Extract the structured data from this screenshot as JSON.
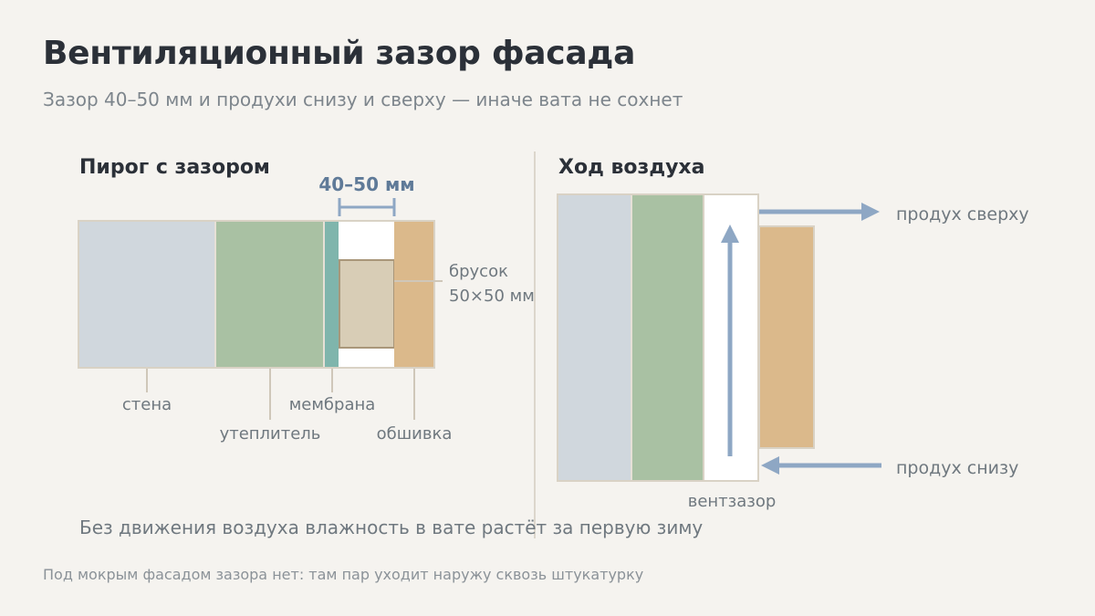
{
  "title": "Вентиляционный зазор фасада",
  "subtitle": "Зазор 40–50 мм и продухи снизу и сверху — иначе вата не сохнет",
  "left_panel": {
    "title": "Пирог с зазором",
    "gap_dimension": "40–50 мм",
    "batten_label_line1": "брусок",
    "batten_label_line2": "50×50 мм",
    "layers": {
      "wall": "стена",
      "insulation": "утеплитель",
      "membrane": "мембрана",
      "cladding": "обшивка"
    }
  },
  "right_panel": {
    "title": "Ход воздуха",
    "vent_top": "продух сверху",
    "vent_bottom": "продух снизу",
    "gap_label": "вентзазор"
  },
  "caption": "Без движения воздуха влажность в вате растёт за первую зиму",
  "footnote": "Под мокрым фасадом зазора нет: там пар уходит наружу сквозь штукатурку",
  "colors": {
    "wall": "#d0d7dd",
    "insulation": "#a9c1a3",
    "membrane": "#7fb5ac",
    "batten": "#d8cdb6",
    "cladding": "#dbb98b",
    "arrow": "#8ea7c4",
    "frame": "#d9d2c5"
  }
}
